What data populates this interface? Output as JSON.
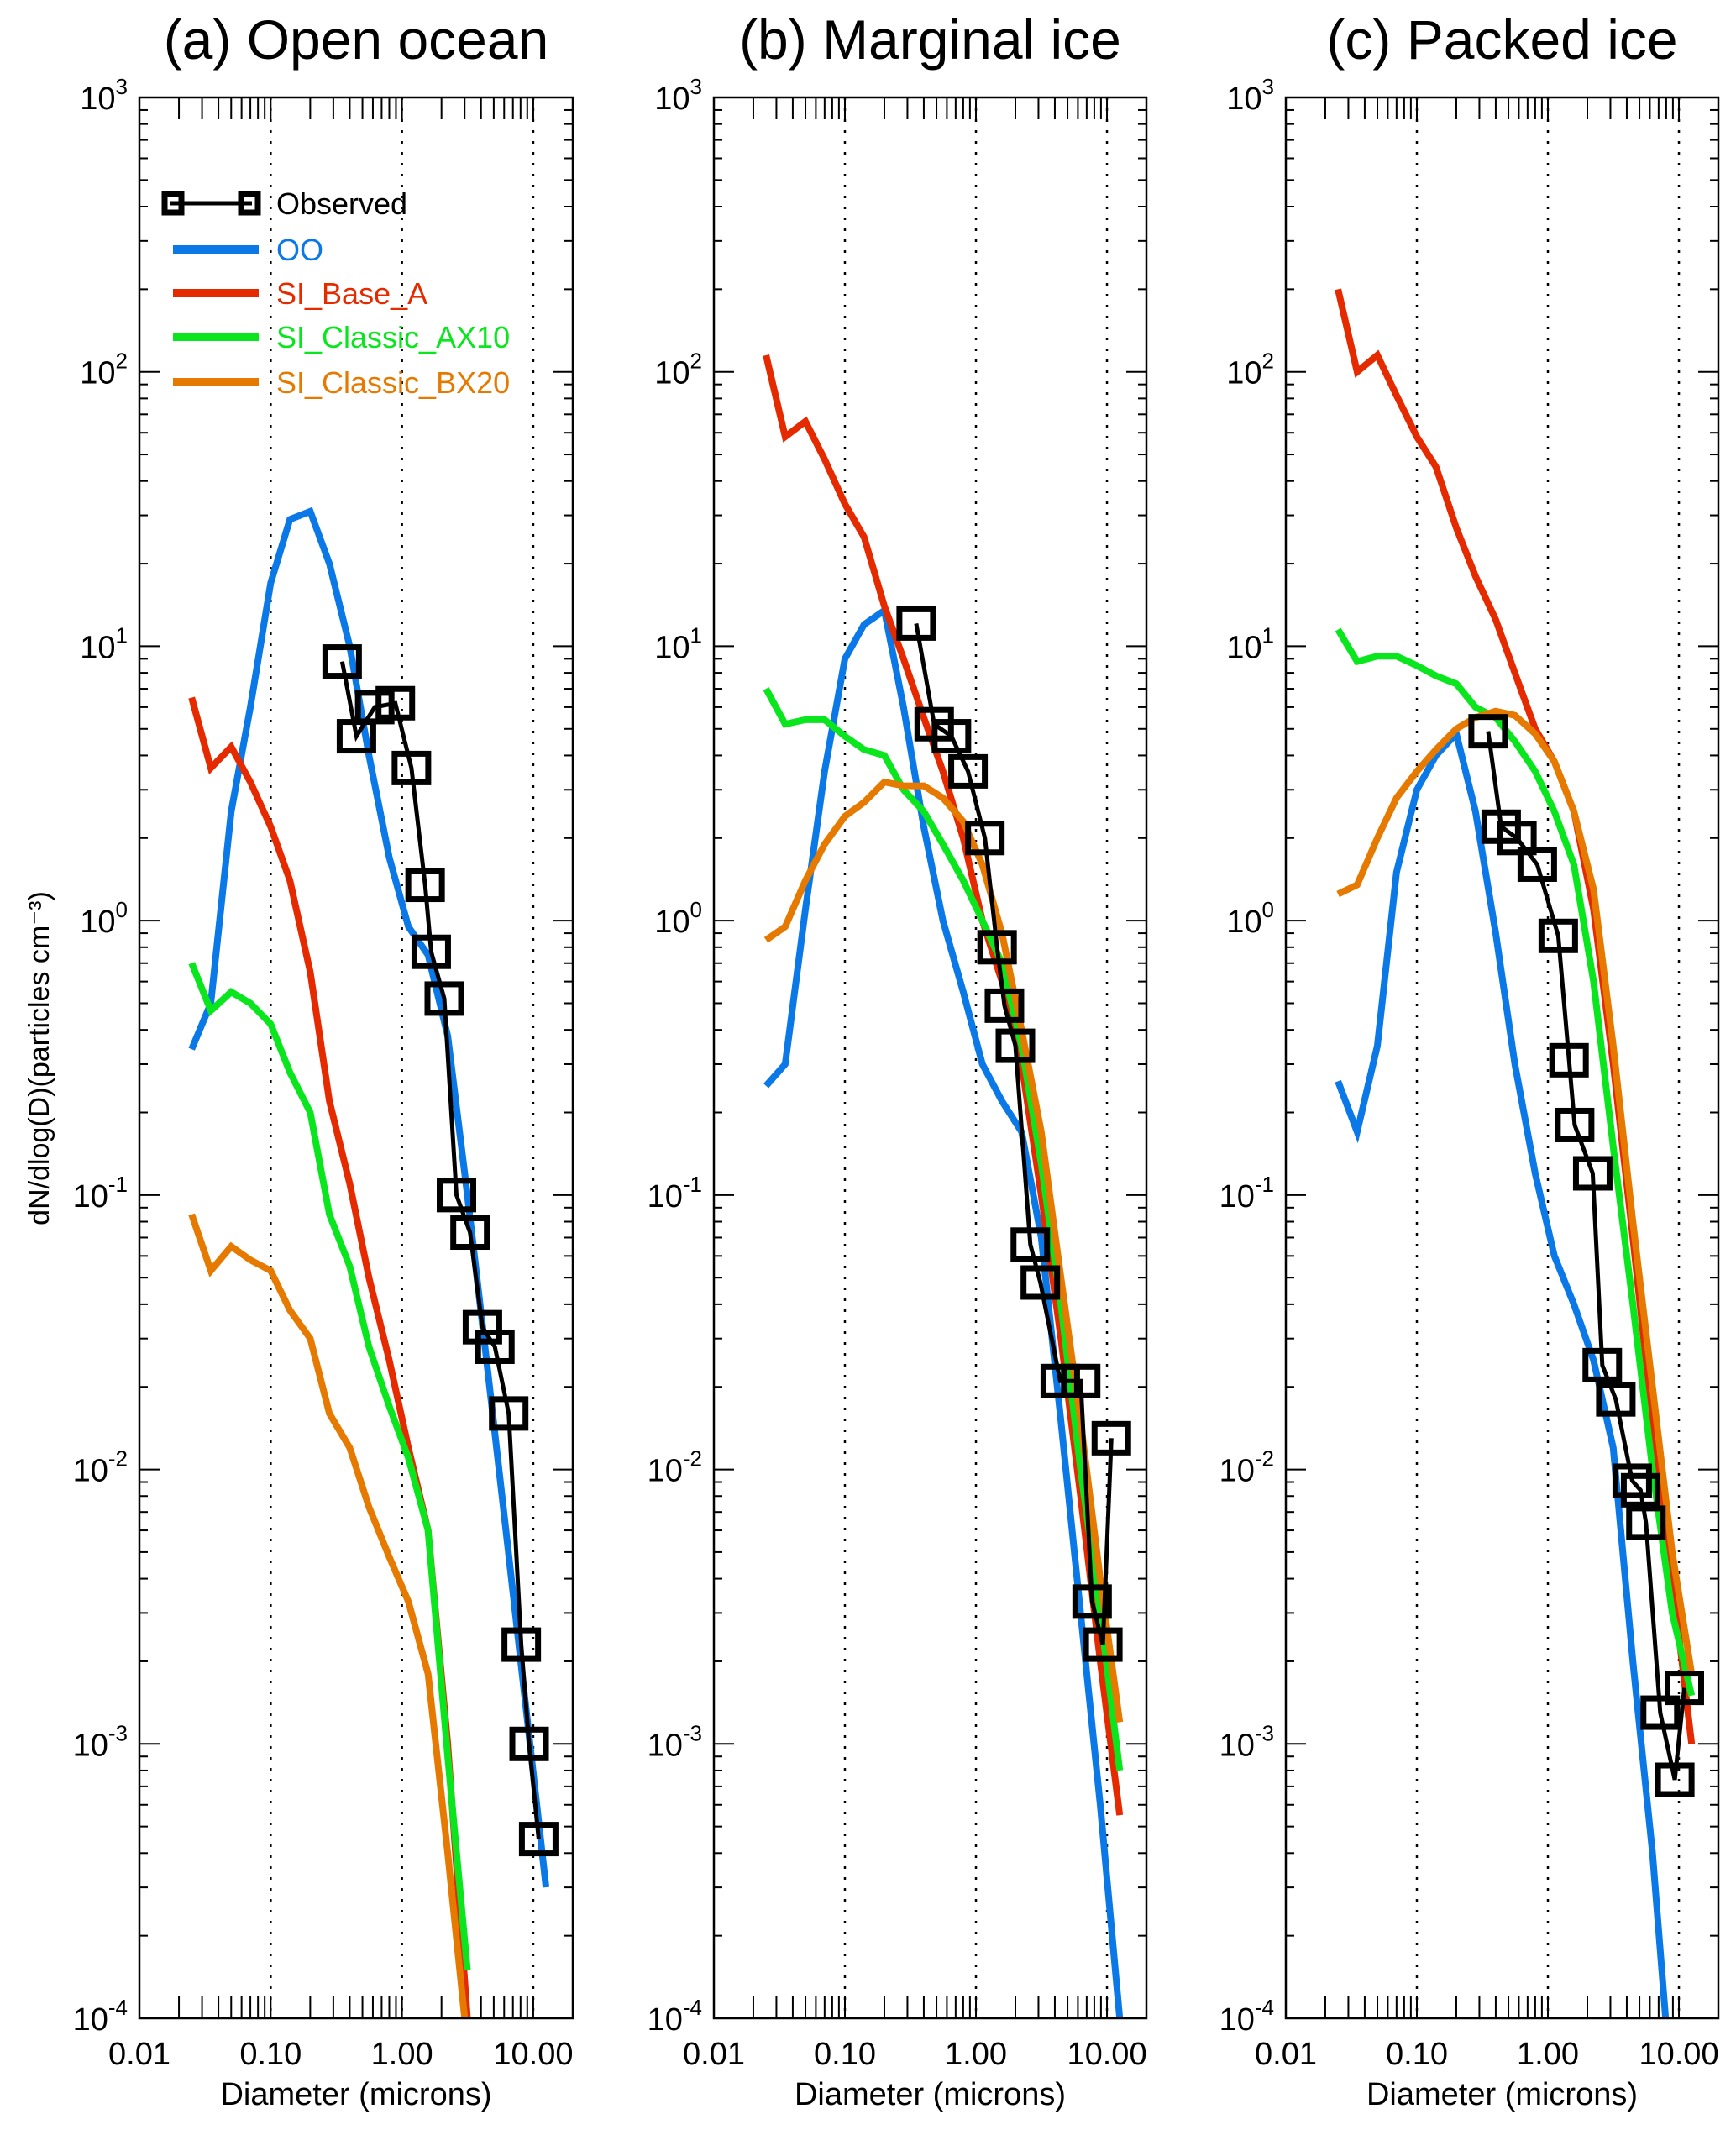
{
  "colors": {
    "Observed": "#000000",
    "OO": "#0a78e6",
    "SI_Base_A": "#e62a00",
    "SI_Classic_AX10": "#0ae61e",
    "SI_Classic_BX20": "#e67a00"
  },
  "ylabel": "dN/dlog(D)(particles cm⁻³)",
  "chart_data": [
    {
      "type": "line",
      "title": "(a) Open ocean",
      "xlabel": "Diameter (microns)",
      "ylabel": "dN/dlog(D)(particles cm⁻³)",
      "xscale": "log",
      "yscale": "log",
      "xlim": [
        0.01,
        20
      ],
      "ylim": [
        0.0001,
        1000
      ],
      "xticks": [
        "0.01",
        "0.10",
        "1.00",
        "10.00"
      ],
      "xtick_values": [
        0.01,
        0.1,
        1,
        10
      ],
      "yticks": [
        {
          "base": "10",
          "exp": "3"
        },
        {
          "base": "10",
          "exp": "2"
        },
        {
          "base": "10",
          "exp": "1"
        },
        {
          "base": "10",
          "exp": "0"
        },
        {
          "base": "10",
          "exp": "-1"
        },
        {
          "base": "10",
          "exp": "-2"
        },
        {
          "base": "10",
          "exp": "-3"
        },
        {
          "base": "10",
          "exp": "-4"
        }
      ],
      "grid": "vertical dotted at decades",
      "legend": "top-left",
      "legend_entries": [
        "Observed",
        "OO",
        "SI_Base_A",
        "SI_Classic_AX10",
        "SI_Classic_BX20"
      ],
      "x": [
        0.025,
        0.035,
        0.05,
        0.07,
        0.1,
        0.14,
        0.2,
        0.28,
        0.4,
        0.56,
        0.8,
        1.12,
        1.58,
        2.23,
        3.15,
        4.45,
        6.29,
        8.88,
        12.5
      ],
      "series": [
        {
          "name": "OO",
          "values": [
            0.34,
            0.5,
            2.5,
            6,
            17,
            29,
            31,
            20,
            10,
            4,
            1.7,
            0.95,
            0.75,
            0.38,
            0.1,
            0.024,
            0.0056,
            0.0013,
            0.0003
          ]
        },
        {
          "name": "SI_Base_A",
          "values": [
            6.5,
            3.6,
            4.3,
            3.2,
            2.2,
            1.4,
            0.65,
            0.22,
            0.11,
            0.05,
            0.025,
            0.012,
            0.006,
            0.001,
            0.0001,
            null,
            null,
            null,
            null
          ]
        },
        {
          "name": "SI_Classic_AX10",
          "values": [
            0.7,
            0.47,
            0.55,
            0.5,
            0.42,
            0.28,
            0.2,
            0.085,
            0.055,
            0.028,
            0.017,
            0.011,
            0.006,
            0.0009,
            0.00015,
            null,
            null,
            null,
            null
          ]
        },
        {
          "name": "SI_Classic_BX20",
          "values": [
            0.085,
            0.053,
            0.065,
            0.058,
            0.053,
            0.038,
            0.03,
            0.016,
            0.012,
            0.0073,
            0.0048,
            0.0033,
            0.0018,
            0.0004,
            8e-05,
            null,
            null,
            null,
            null
          ]
        }
      ],
      "observed": {
        "name": "Observed",
        "x": [
          0.35,
          0.45,
          0.62,
          0.89,
          1.18,
          1.5,
          1.67,
          2.1,
          2.6,
          3.3,
          4.1,
          5.1,
          6.5,
          8.1,
          9.3,
          11
        ],
        "values": [
          8.8,
          4.7,
          6.0,
          6.2,
          3.6,
          1.35,
          0.77,
          0.52,
          0.1,
          0.073,
          0.033,
          0.028,
          0.016,
          0.0023,
          0.001,
          0.00045
        ]
      }
    },
    {
      "type": "line",
      "title": "(b) Marginal ice",
      "xlabel": "Diameter (microns)",
      "xscale": "log",
      "yscale": "log",
      "xlim": [
        0.01,
        20
      ],
      "ylim": [
        0.0001,
        1000
      ],
      "xticks": [
        "0.01",
        "0.10",
        "1.00",
        "10.00"
      ],
      "xtick_values": [
        0.01,
        0.1,
        1,
        10
      ],
      "yticks": [
        {
          "base": "10",
          "exp": "3"
        },
        {
          "base": "10",
          "exp": "2"
        },
        {
          "base": "10",
          "exp": "1"
        },
        {
          "base": "10",
          "exp": "0"
        },
        {
          "base": "10",
          "exp": "-1"
        },
        {
          "base": "10",
          "exp": "-2"
        },
        {
          "base": "10",
          "exp": "-3"
        },
        {
          "base": "10",
          "exp": "-4"
        }
      ],
      "grid": "vertical dotted at decades",
      "x": [
        0.025,
        0.035,
        0.05,
        0.07,
        0.1,
        0.14,
        0.2,
        0.28,
        0.4,
        0.56,
        0.8,
        1.12,
        1.58,
        2.23,
        3.15,
        4.45,
        6.29,
        8.88,
        12.5
      ],
      "series": [
        {
          "name": "OO",
          "values": [
            0.25,
            0.3,
            1.1,
            3.5,
            9,
            12,
            13.5,
            6,
            2.2,
            1.0,
            0.55,
            0.3,
            0.22,
            0.17,
            0.07,
            0.015,
            0.003,
            0.0006,
            0.0001
          ]
        },
        {
          "name": "SI_Base_A",
          "values": [
            115,
            58,
            66,
            48,
            33,
            25,
            14,
            9,
            5.5,
            3.5,
            2,
            1.0,
            0.6,
            0.3,
            0.1,
            0.03,
            0.008,
            0.002,
            0.00055
          ]
        },
        {
          "name": "SI_Classic_AX10",
          "values": [
            7,
            5.2,
            5.4,
            5.4,
            4.7,
            4.2,
            4,
            3,
            2.5,
            1.9,
            1.4,
            1.0,
            0.7,
            0.35,
            0.13,
            0.04,
            0.01,
            0.003,
            0.0008
          ]
        },
        {
          "name": "SI_Classic_BX20",
          "values": [
            0.85,
            0.95,
            1.4,
            1.9,
            2.4,
            2.7,
            3.2,
            3.1,
            3.1,
            2.8,
            2.3,
            1.6,
            0.9,
            0.4,
            0.17,
            0.05,
            0.015,
            0.004,
            0.0012
          ]
        }
      ],
      "observed": {
        "name": "Observed",
        "x": [
          0.35,
          0.48,
          0.65,
          0.87,
          1.17,
          1.45,
          1.65,
          2.0,
          2.6,
          3.1,
          4.4,
          6.3,
          7.7,
          9.3,
          10.8
        ],
        "values": [
          12.1,
          5.2,
          4.7,
          3.5,
          2.0,
          0.8,
          0.49,
          0.35,
          0.066,
          0.048,
          0.021,
          0.021,
          0.0033,
          0.0023,
          0.013
        ]
      }
    },
    {
      "type": "line",
      "title": "(c) Packed ice",
      "xlabel": "Diameter (microns)",
      "xscale": "log",
      "yscale": "log",
      "xlim": [
        0.01,
        20
      ],
      "ylim": [
        0.0001,
        1000
      ],
      "xticks": [
        "0.01",
        "0.10",
        "1.00",
        "10.00"
      ],
      "xtick_values": [
        0.01,
        0.1,
        1,
        10
      ],
      "yticks": [
        {
          "base": "10",
          "exp": "3"
        },
        {
          "base": "10",
          "exp": "2"
        },
        {
          "base": "10",
          "exp": "1"
        },
        {
          "base": "10",
          "exp": "0"
        },
        {
          "base": "10",
          "exp": "-1"
        },
        {
          "base": "10",
          "exp": "-2"
        },
        {
          "base": "10",
          "exp": "-3"
        },
        {
          "base": "10",
          "exp": "-4"
        }
      ],
      "grid": "vertical dotted at decades",
      "x": [
        0.025,
        0.035,
        0.05,
        0.07,
        0.1,
        0.14,
        0.2,
        0.28,
        0.4,
        0.56,
        0.8,
        1.12,
        1.58,
        2.23,
        3.15,
        4.45,
        6.29,
        8.88,
        12.5
      ],
      "series": [
        {
          "name": "OO",
          "values": [
            0.26,
            0.17,
            0.35,
            1.5,
            3,
            4,
            4.8,
            2.5,
            0.9,
            0.3,
            0.12,
            0.06,
            0.04,
            0.025,
            0.012,
            0.002,
            0.0004,
            5e-05,
            null
          ]
        },
        {
          "name": "SI_Base_A",
          "values": [
            200,
            100,
            115,
            82,
            58,
            45,
            27,
            18,
            12.5,
            8,
            5,
            3.8,
            2.5,
            1.1,
            0.3,
            0.07,
            0.015,
            0.004,
            0.001
          ]
        },
        {
          "name": "SI_Classic_AX10",
          "values": [
            11.5,
            8.8,
            9.2,
            9.2,
            8.5,
            7.8,
            7.3,
            6,
            5.5,
            4.5,
            3.5,
            2.5,
            1.6,
            0.6,
            0.15,
            0.04,
            0.01,
            0.003,
            0.0015
          ]
        },
        {
          "name": "SI_Classic_BX20",
          "values": [
            1.25,
            1.35,
            2,
            2.8,
            3.5,
            4.2,
            5,
            5.5,
            5.8,
            5.6,
            4.8,
            3.8,
            2.5,
            1.3,
            0.35,
            0.08,
            0.02,
            0.005,
            0.0018
          ]
        }
      ],
      "observed": {
        "name": "Observed",
        "x": [
          0.35,
          0.44,
          0.58,
          0.83,
          1.2,
          1.45,
          1.6,
          2.2,
          2.6,
          3.3,
          4.4,
          5.1,
          5.6,
          7.2,
          9.3,
          11.0
        ],
        "values": [
          4.9,
          2.2,
          2.0,
          1.6,
          0.88,
          0.31,
          0.18,
          0.12,
          0.024,
          0.018,
          0.0091,
          0.0084,
          0.0064,
          0.0013,
          0.00074,
          0.0016
        ]
      }
    }
  ]
}
